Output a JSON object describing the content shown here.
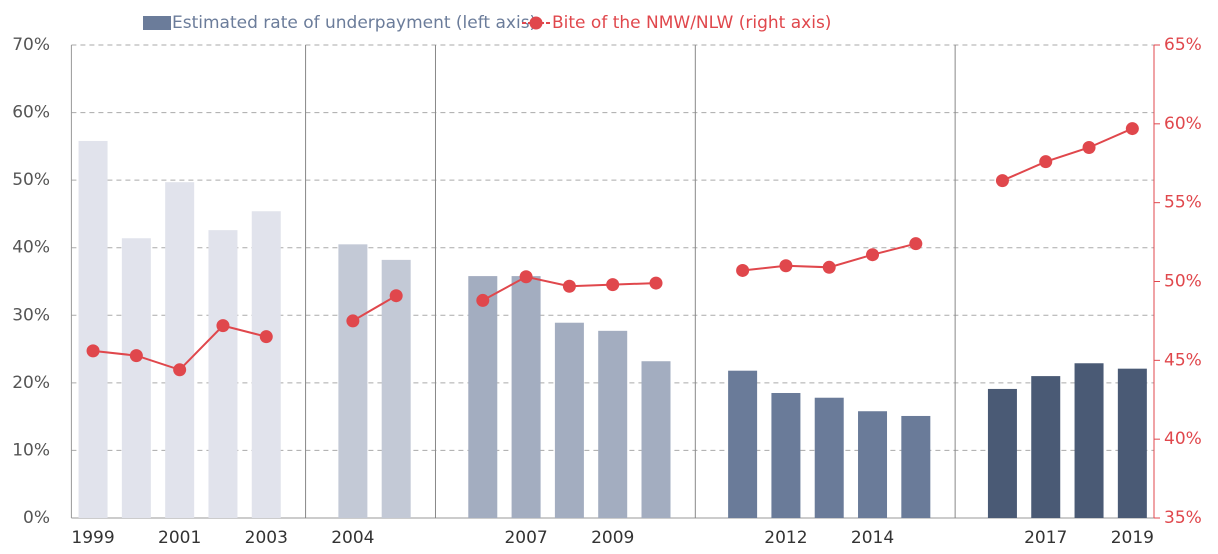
{
  "chart_data": {
    "type": "bar_line",
    "categories": [
      "1999",
      null,
      "2001",
      null,
      "2003",
      null,
      "2004",
      null,
      null,
      null,
      "2007",
      null,
      "2009",
      null,
      null,
      null,
      "2012",
      null,
      "2014",
      null,
      null,
      null,
      "2017",
      null,
      "2019"
    ],
    "series": [
      {
        "name": "Estimated rate of underpayment (left axis)",
        "type": "bar",
        "color": "#6b7c9a",
        "axis": "y",
        "colors": [
          "#e1e3ec",
          "#e1e3ec",
          "#e1e3ec",
          "#e1e3ec",
          "#e1e3ec",
          null,
          "#c3c9d6",
          "#c3c9d6",
          null,
          "#a3adc0",
          "#a3adc0",
          "#a3adc0",
          "#a3adc0",
          "#a3adc0",
          null,
          "#6a7b99",
          "#6a7b99",
          "#6a7b99",
          "#6a7b99",
          "#6a7b99",
          null,
          "#4a5a75",
          "#4a5a75",
          "#4a5a75",
          "#4a5a75"
        ],
        "values": [
          55.8,
          41.4,
          49.7,
          42.6,
          45.4,
          null,
          40.5,
          38.2,
          null,
          35.8,
          35.8,
          28.9,
          27.7,
          23.2,
          null,
          21.8,
          18.5,
          17.8,
          15.8,
          15.1,
          null,
          19.1,
          21.0,
          22.9,
          22.1
        ]
      },
      {
        "name": "Bite of the NMW/NLW (right axis)",
        "type": "line",
        "color": "#e0474c",
        "axis": "y2",
        "values": [
          45.6,
          45.3,
          44.4,
          47.2,
          46.5,
          null,
          47.5,
          49.1,
          null,
          48.8,
          50.3,
          49.7,
          49.8,
          49.9,
          null,
          50.7,
          51.0,
          50.9,
          51.7,
          52.4,
          null,
          56.4,
          57.6,
          58.5,
          59.7
        ]
      }
    ],
    "ylim": [
      0,
      70
    ],
    "yticks": [
      {
        "value": 0,
        "label": "0%"
      },
      {
        "value": 10,
        "label": "10%"
      },
      {
        "value": 20,
        "label": "20%"
      },
      {
        "value": 30,
        "label": "30%"
      },
      {
        "value": 40,
        "label": "40%"
      },
      {
        "value": 50,
        "label": "50%"
      },
      {
        "value": 60,
        "label": "60%"
      },
      {
        "value": 70,
        "label": "70%"
      }
    ],
    "y2lim": [
      35,
      65
    ],
    "y2ticks": [
      {
        "value": 35,
        "label": "35%"
      },
      {
        "value": 40,
        "label": "40%"
      },
      {
        "value": 45,
        "label": "45%"
      },
      {
        "value": 50,
        "label": "50%"
      },
      {
        "value": 55,
        "label": "55%"
      },
      {
        "value": 60,
        "label": "60%"
      },
      {
        "value": 65,
        "label": "65%"
      }
    ],
    "grid": true
  }
}
